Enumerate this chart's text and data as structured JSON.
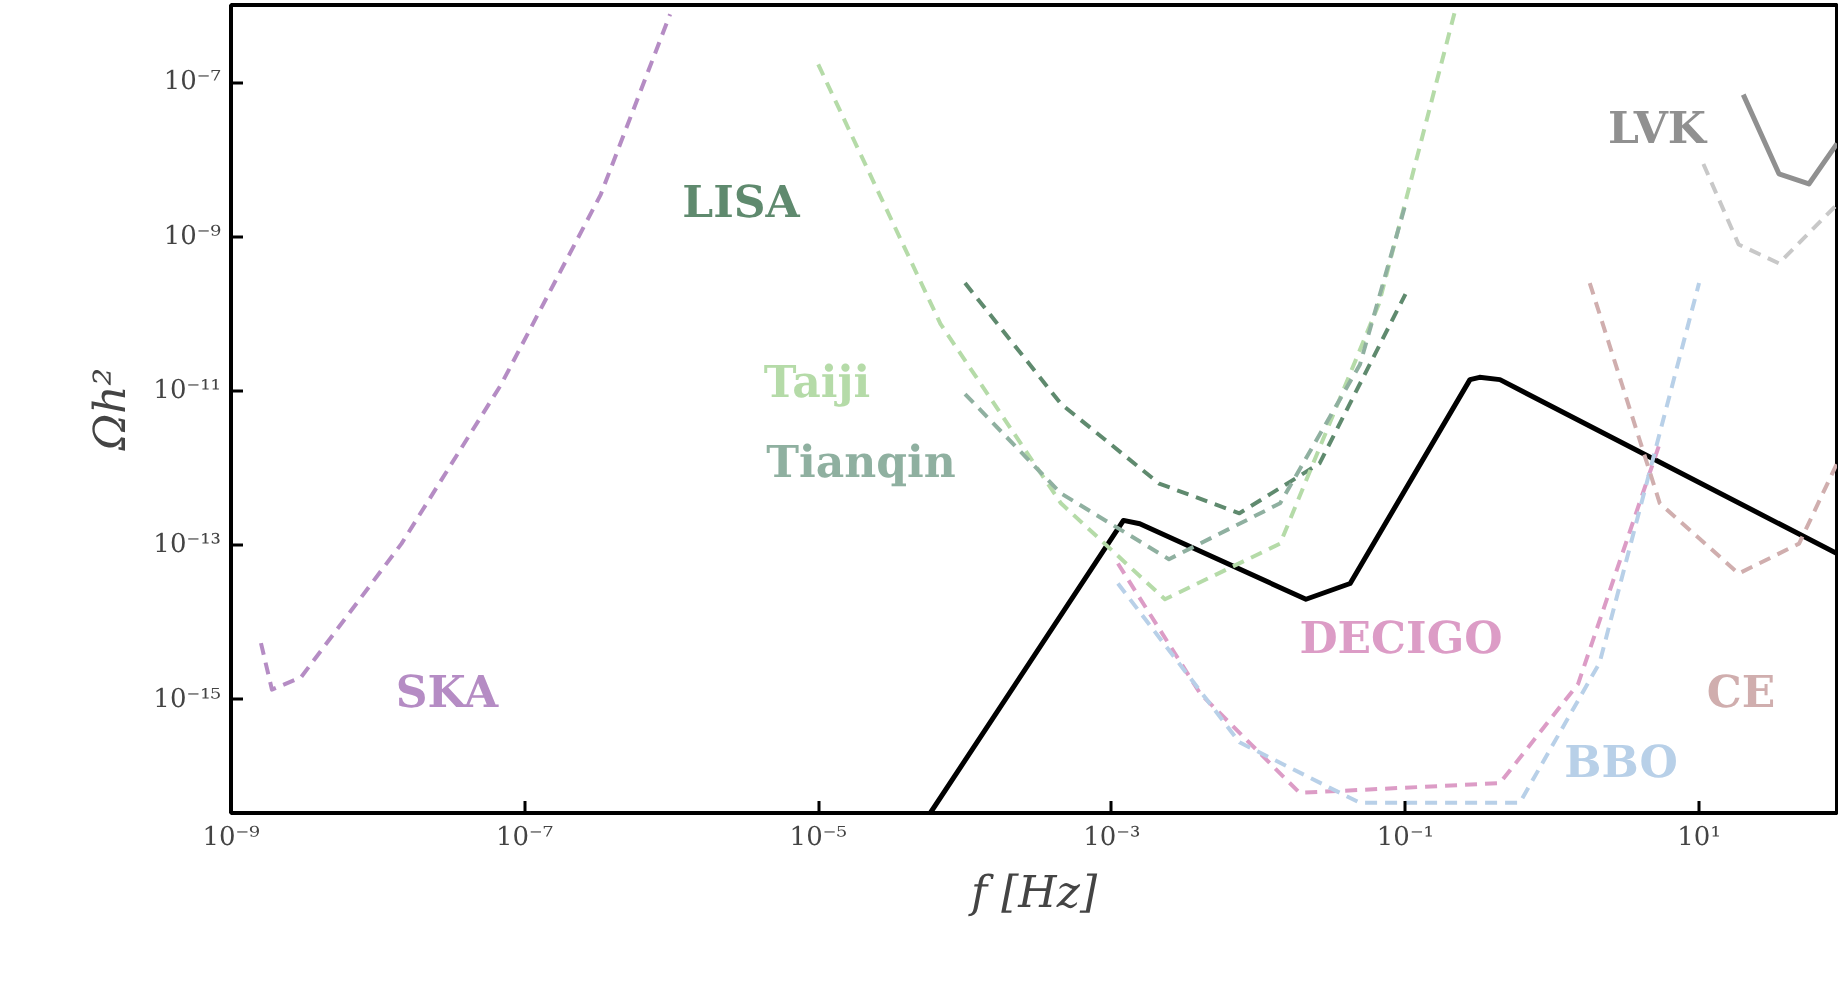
{
  "chart_data": {
    "type": "line",
    "xlabel": "f [Hz]",
    "ylabel": "Ωh²",
    "log": "xy",
    "grid": false,
    "xlim": [
      1e-09,
      87
    ],
    "ylim": [
      3.4e-17,
      1e-06
    ],
    "xticks": [
      {
        "value": 1e-09,
        "label": "10⁻⁹"
      },
      {
        "value": 1e-07,
        "label": "10⁻⁷"
      },
      {
        "value": 1e-05,
        "label": "10⁻⁵"
      },
      {
        "value": 0.001,
        "label": "10⁻³"
      },
      {
        "value": 0.1,
        "label": "10⁻¹"
      },
      {
        "value": 10,
        "label": "10¹"
      }
    ],
    "yticks": [
      {
        "value": 1e-15,
        "label": "10⁻¹⁵"
      },
      {
        "value": 1e-13,
        "label": "10⁻¹³"
      },
      {
        "value": 1e-11,
        "label": "10⁻¹¹"
      },
      {
        "value": 1e-09,
        "label": "10⁻⁹"
      },
      {
        "value": 1e-07,
        "label": "10⁻⁷"
      }
    ],
    "series": [
      {
        "color": "#000000",
        "line_style": "solid",
        "x": [
          5.8e-05,
          0.0012,
          0.00155,
          0.021,
          0.042,
          0.275,
          0.32,
          0.44,
          87
        ],
        "values": [
          3.4e-17,
          2.1e-13,
          1.9e-13,
          2e-14,
          3.2e-14,
          1.4e-11,
          1.5e-11,
          1.4e-11,
          7.8e-14
        ]
      },
      {
        "color": "#b58cc4",
        "line_style": "dashed",
        "x": [
          1.6e-09,
          1.9e-09,
          3e-09,
          1.45e-08,
          6.9e-08,
          3.3e-07,
          9.8e-07
        ],
        "values": [
          5.4e-15,
          1.35e-15,
          1.95e-15,
          1.05e-13,
          1.2e-11,
          3.5e-09,
          7.6e-07
        ]
      },
      {
        "color": "#5f8a6e",
        "line_style": "dashed",
        "x": [
          0.0001,
          0.00045,
          0.0021,
          0.0074,
          0.026,
          0.1
        ],
        "values": [
          2.5e-10,
          6.8e-12,
          6.3e-13,
          2.6e-13,
          1.15e-12,
          1.8e-10
        ]
      },
      {
        "color": "#b5dba8",
        "line_style": "dashed",
        "x": [
          1e-05,
          6.8e-05,
          0.00045,
          0.0023,
          0.014,
          0.066,
          0.22
        ],
        "values": [
          1.7e-07,
          7.4e-11,
          3.5e-13,
          2e-14,
          1.05e-13,
          1.35e-10,
          9.1e-07
        ]
      },
      {
        "color": "#8fb0a0",
        "line_style": "dashed",
        "x": [
          0.0001,
          0.00045,
          0.00245,
          0.014,
          0.049,
          0.1
        ],
        "values": [
          9.1e-12,
          4.7e-13,
          6.6e-14,
          3.5e-13,
          2.2e-11,
          2.6e-09
        ]
      },
      {
        "color": "#dc9cc6",
        "line_style": "dashed",
        "x": [
          0.0011,
          0.004,
          0.019,
          0.44,
          1.5,
          5.4
        ],
        "values": [
          5.8e-14,
          1.2e-15,
          6.2e-17,
          8.3e-17,
          1.6e-15,
          2.1e-12
        ]
      },
      {
        "color": "#b8d0e8",
        "line_style": "dashed",
        "x": [
          0.0011,
          0.0074,
          0.049,
          0.6,
          2.1,
          10
        ],
        "values": [
          3.2e-14,
          2.8e-16,
          4.6e-17,
          4.6e-17,
          3e-15,
          2.5e-10
        ]
      },
      {
        "color": "#d0aeae",
        "line_style": "dashed",
        "x": [
          1.8,
          5.4,
          18.6,
          48,
          87
        ],
        "values": [
          2.5e-10,
          3.5e-13,
          4.3e-14,
          1.05e-13,
          1.15e-12
        ]
      },
      {
        "color": "#909090",
        "line_style": "solid",
        "x": [
          20,
          35,
          56,
          87
        ],
        "values": [
          6.9e-08,
          6.5e-09,
          4.8e-09,
          1.6e-08
        ]
      },
      {
        "color": "#c8c8c8",
        "line_style": "dashed",
        "x": [
          10.7,
          18.6,
          35,
          87
        ],
        "values": [
          8.7e-09,
          7.9e-10,
          4.5e-10,
          2.6e-09
        ]
      }
    ],
    "annotations": [
      "SKA",
      "LISA",
      "Taiji",
      "Tianqin",
      "DECIGO",
      "BBO",
      "CE",
      "LVK"
    ]
  }
}
